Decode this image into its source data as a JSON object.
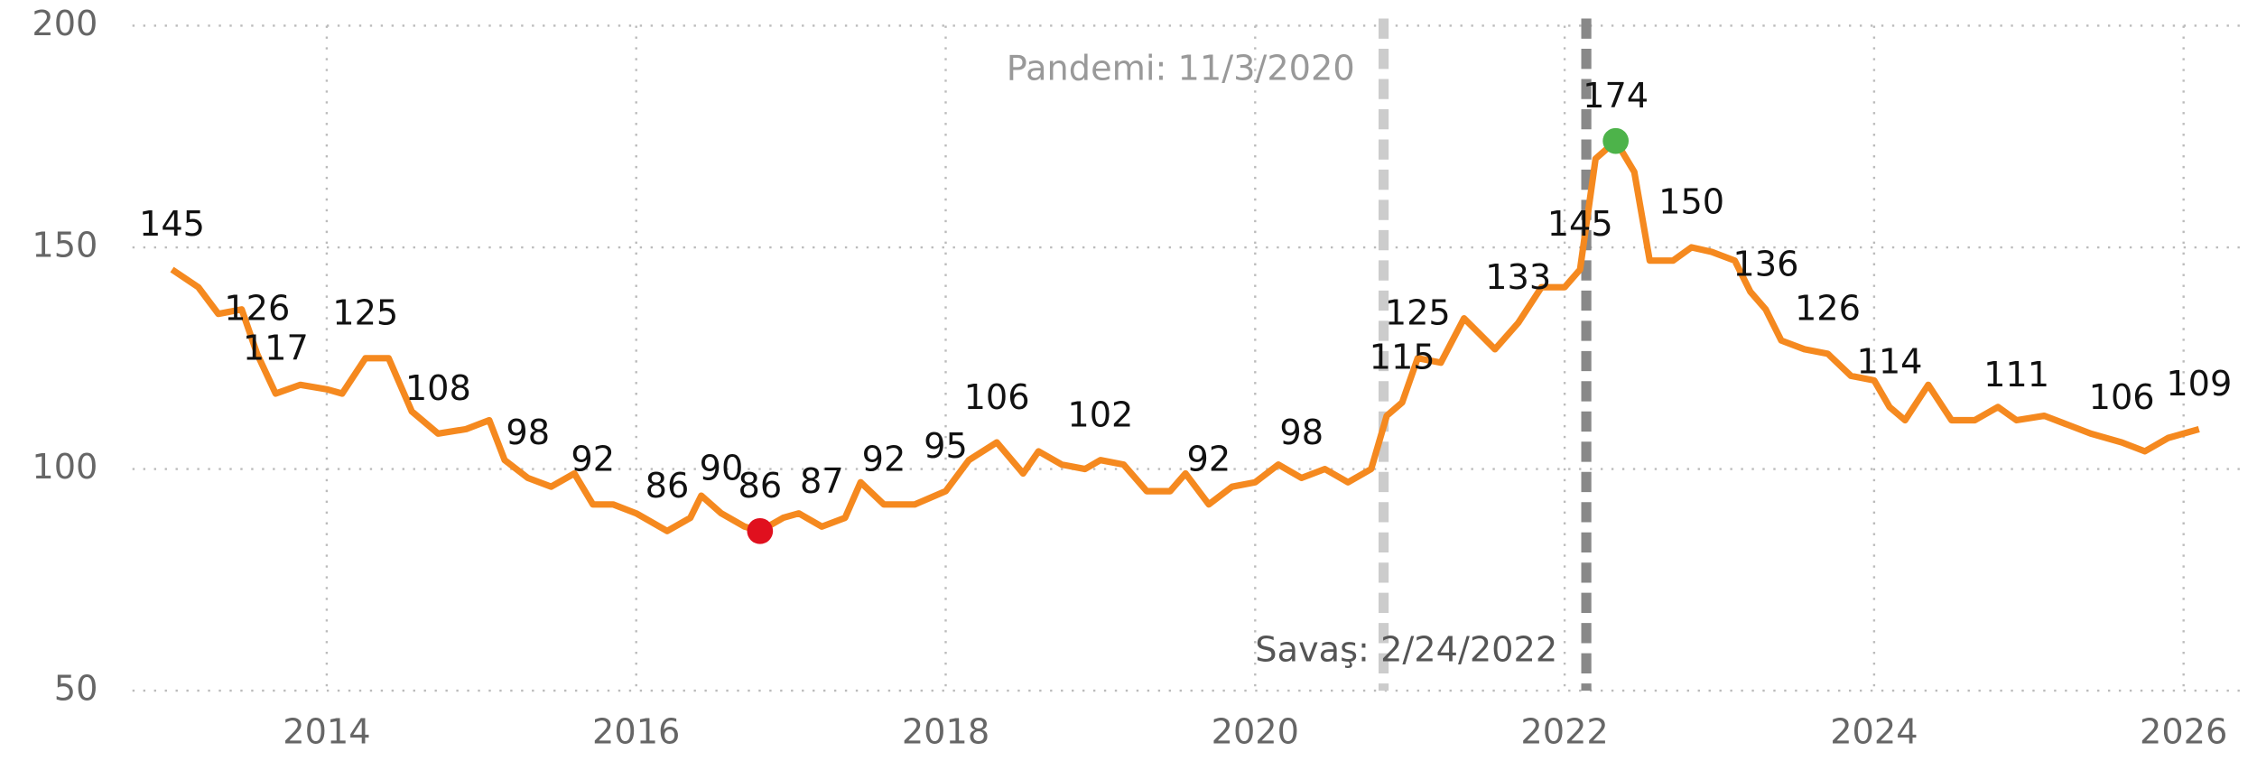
{
  "chart_data": {
    "type": "line",
    "x": [
      2013.0,
      2013.17,
      2013.3,
      2013.45,
      2013.55,
      2013.67,
      2013.83,
      2014.0,
      2014.1,
      2014.25,
      2014.4,
      2014.55,
      2014.72,
      2014.9,
      2015.05,
      2015.15,
      2015.3,
      2015.45,
      2015.6,
      2015.72,
      2015.85,
      2016.0,
      2016.2,
      2016.35,
      2016.42,
      2016.55,
      2016.7,
      2016.8,
      2016.95,
      2017.05,
      2017.2,
      2017.35,
      2017.45,
      2017.6,
      2017.8,
      2018.0,
      2018.15,
      2018.33,
      2018.5,
      2018.6,
      2018.75,
      2018.9,
      2019.0,
      2019.15,
      2019.3,
      2019.45,
      2019.55,
      2019.7,
      2019.85,
      2020.0,
      2020.15,
      2020.3,
      2020.45,
      2020.6,
      2020.75,
      2020.85,
      2020.95,
      2021.05,
      2021.2,
      2021.35,
      2021.55,
      2021.7,
      2021.85,
      2022.0,
      2022.1,
      2022.2,
      2022.33,
      2022.45,
      2022.55,
      2022.7,
      2022.82,
      2022.95,
      2023.1,
      2023.2,
      2023.3,
      2023.4,
      2023.55,
      2023.7,
      2023.85,
      2024.0,
      2024.1,
      2024.2,
      2024.35,
      2024.5,
      2024.65,
      2024.8,
      2024.92,
      2025.1,
      2025.25,
      2025.4,
      2025.6,
      2025.75,
      2025.9,
      2026.1
    ],
    "series": [
      {
        "color": "#f5891f",
        "values": [
          145,
          141,
          135,
          136,
          126,
          117,
          119,
          118,
          117,
          125,
          125,
          113,
          108,
          109,
          111,
          102,
          98,
          96,
          99,
          92,
          92,
          90,
          86,
          89,
          94,
          90,
          87,
          86,
          89,
          90,
          87,
          89,
          97,
          92,
          92,
          95,
          102,
          106,
          99,
          104,
          101,
          100,
          102,
          101,
          95,
          95,
          99,
          92,
          96,
          97,
          101,
          98,
          100,
          97,
          100,
          112,
          115,
          125,
          124,
          134,
          127,
          133,
          141,
          141,
          145,
          170,
          174,
          167,
          147,
          147,
          150,
          149,
          147,
          140,
          136,
          129,
          127,
          126,
          121,
          120,
          114,
          111,
          119,
          111,
          111,
          114,
          111,
          112,
          110,
          108,
          106,
          104,
          107,
          109
        ],
        "value_labels": [
          "145",
          null,
          null,
          null,
          "126",
          "117",
          null,
          null,
          null,
          "125",
          null,
          null,
          "108",
          null,
          null,
          null,
          "98",
          null,
          null,
          "92",
          null,
          null,
          "86",
          null,
          null,
          "90",
          null,
          "86",
          null,
          null,
          "87",
          null,
          null,
          "92",
          null,
          "95",
          null,
          "106",
          null,
          null,
          null,
          null,
          "102",
          null,
          null,
          null,
          null,
          "92",
          null,
          null,
          null,
          "98",
          null,
          null,
          null,
          null,
          "115",
          "125",
          null,
          null,
          null,
          "133",
          null,
          null,
          "145",
          null,
          "174",
          null,
          null,
          null,
          "150",
          null,
          null,
          null,
          "136",
          null,
          null,
          "126",
          null,
          null,
          "114",
          null,
          null,
          null,
          null,
          null,
          "111",
          null,
          null,
          null,
          "106",
          null,
          null,
          "109"
        ]
      }
    ],
    "highlights": [
      {
        "x": 2016.8,
        "value": 86,
        "color": "#e0101e"
      },
      {
        "x": 2022.33,
        "value": 174,
        "color": "#4db34a"
      }
    ],
    "events": [
      {
        "x": 2020.83,
        "label": "Pandemi: 11/3/2020",
        "color": "#cccccc"
      },
      {
        "x": 2022.14,
        "label": "Savaş: 2/24/2022",
        "color": "#888888"
      }
    ],
    "xlim": [
      2012.35,
      2026.6
    ],
    "xticks": [
      2014,
      2016,
      2018,
      2020,
      2022,
      2024,
      2026
    ],
    "ylim": [
      50,
      200
    ],
    "yticks": [
      50,
      100,
      150,
      200
    ],
    "grid": true
  }
}
